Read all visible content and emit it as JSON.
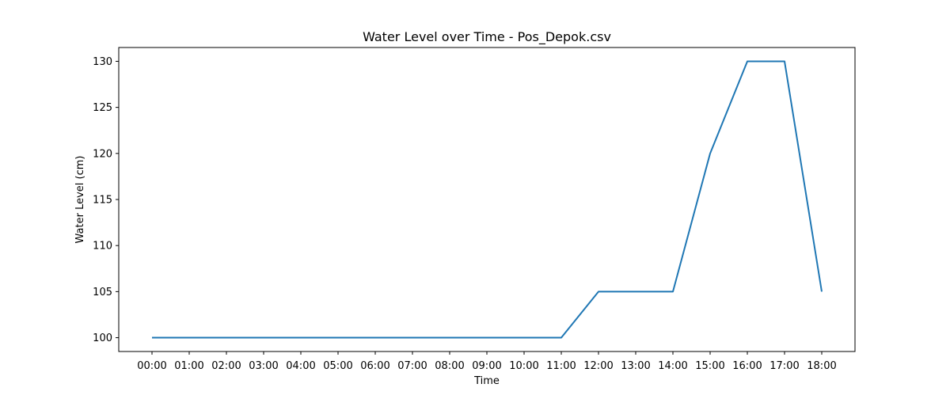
{
  "chart_data": {
    "type": "line",
    "title": "Water Level over Time - Pos_Depok.csv",
    "xlabel": "Time",
    "ylabel": "Water Level (cm)",
    "categories": [
      "00:00",
      "01:00",
      "02:00",
      "03:00",
      "04:00",
      "05:00",
      "06:00",
      "07:00",
      "08:00",
      "09:00",
      "10:00",
      "11:00",
      "12:00",
      "13:00",
      "14:00",
      "15:00",
      "16:00",
      "17:00",
      "18:00"
    ],
    "series": [
      {
        "values": [
          100,
          100,
          100,
          100,
          100,
          100,
          100,
          100,
          100,
          100,
          100,
          100,
          105,
          105,
          105,
          120,
          130,
          130,
          105
        ]
      }
    ],
    "yticks": [
      100,
      105,
      110,
      115,
      120,
      125,
      130
    ],
    "ylim": [
      98.5,
      131.5
    ],
    "grid": false,
    "line_color": "#1f77b4"
  }
}
